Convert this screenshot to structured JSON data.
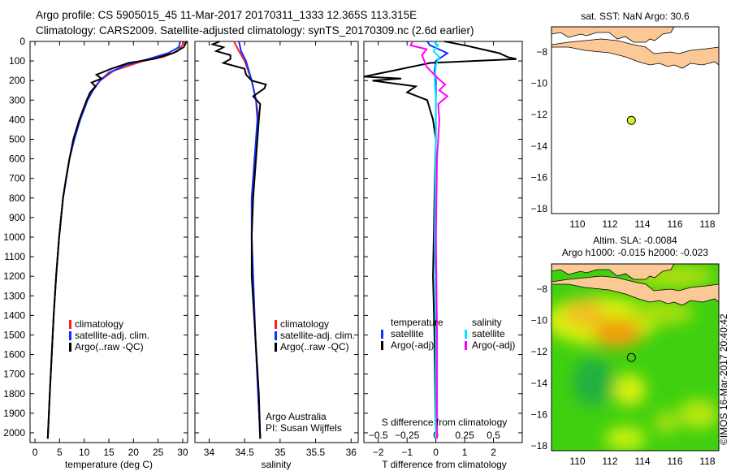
{
  "header": {
    "line1": "Argo profile: CS 5905015_45 11-Mar-2017 20170311_1333 12.365S 113.315E",
    "line2": "Climatology: CARS2009. Satellite-adjusted climatology: synTS_20170309.nc (2.6d earlier)"
  },
  "credit": "©IMOS 16-Mar-2017 20:40:42",
  "colors": {
    "climatology": "#ff2020",
    "satellite": "#1030ff",
    "argo": "#000000",
    "sal_satellite": "#00e8ff",
    "sal_argo": "#ff00ff",
    "land": "#fcc896",
    "dot": "#d8f020"
  },
  "chart_data": [
    {
      "type": "line",
      "name": "temperature",
      "xlabel": "temperature (deg C)",
      "xlim": [
        -1,
        31
      ],
      "ylim": [
        2050,
        0
      ],
      "yticks": [
        0,
        100,
        200,
        300,
        400,
        500,
        600,
        700,
        800,
        900,
        1000,
        1100,
        1200,
        1300,
        1400,
        1500,
        1600,
        1700,
        1800,
        1900,
        2000
      ],
      "xticks": [
        0,
        5,
        10,
        15,
        20,
        25,
        30
      ],
      "legend": [
        "climatology",
        "satellite-adj. clim.",
        "Argo(..raw -QC)"
      ],
      "series": [
        {
          "name": "climatology",
          "color": "#ff2020",
          "depth": [
            0,
            50,
            80,
            100,
            150,
            200,
            250,
            300,
            400,
            500,
            600,
            700,
            800,
            900,
            1000,
            1200,
            1400,
            1600,
            1800,
            2030
          ],
          "values": [
            30.5,
            29,
            26,
            22,
            16,
            13.2,
            11.6,
            10.6,
            9.1,
            7.9,
            7.0,
            6.3,
            5.7,
            5.3,
            4.9,
            4.3,
            3.8,
            3.4,
            3.0,
            2.6
          ]
        },
        {
          "name": "satellite-adj. clim.",
          "color": "#1030ff",
          "depth": [
            0,
            30,
            60,
            90,
            120,
            160,
            200,
            250,
            300,
            400,
            500,
            600,
            700,
            800,
            1000,
            1200,
            1400,
            1600,
            1800,
            2030
          ],
          "values": [
            29.5,
            29.2,
            27,
            23,
            18.5,
            15,
            13.2,
            11.8,
            10.7,
            9.2,
            8.0,
            7.0,
            6.3,
            5.7,
            4.9,
            4.3,
            3.8,
            3.4,
            3.0,
            2.6
          ]
        },
        {
          "name": "Argo(..raw -QC)",
          "color": "#000000",
          "depth": [
            0,
            30,
            60,
            90,
            110,
            140,
            170,
            190,
            210,
            230,
            260,
            300,
            400,
            500,
            600,
            800,
            1000,
            1200,
            1400,
            1600,
            1800,
            2030
          ],
          "values": [
            30.8,
            30.2,
            28,
            24,
            19,
            15.5,
            12.5,
            13.5,
            11.5,
            12.3,
            11.2,
            10.5,
            9.0,
            7.8,
            7.0,
            5.7,
            4.9,
            4.3,
            3.8,
            3.4,
            3.0,
            2.6
          ]
        }
      ]
    },
    {
      "type": "line",
      "name": "salinity",
      "xlabel": "salinity",
      "xlim": [
        33.8,
        36.1
      ],
      "ylim": [
        2050,
        0
      ],
      "xticks": [
        34,
        34.5,
        35,
        35.5,
        36
      ],
      "legend": [
        "climatology",
        "satellite-adj. clim.",
        "Argo(..raw -QC)"
      ],
      "annotation": [
        "Argo Australia",
        "PI: Susan Wijffels"
      ],
      "series": [
        {
          "name": "climatology",
          "color": "#ff2020",
          "depth": [
            0,
            50,
            100,
            200,
            300,
            400,
            600,
            800,
            1000,
            1500,
            2030
          ],
          "values": [
            34.35,
            34.42,
            34.5,
            34.6,
            34.66,
            34.7,
            34.64,
            34.6,
            34.6,
            34.65,
            34.72
          ]
        },
        {
          "name": "satellite-adj. clim.",
          "color": "#1030ff",
          "depth": [
            0,
            50,
            100,
            200,
            300,
            400,
            600,
            800,
            1000,
            1500,
            2030
          ],
          "values": [
            34.42,
            34.45,
            34.52,
            34.6,
            34.66,
            34.68,
            34.64,
            34.6,
            34.6,
            34.65,
            34.72
          ]
        },
        {
          "name": "Argo(..raw -QC)",
          "color": "#000000",
          "depth": [
            0,
            15,
            30,
            50,
            70,
            90,
            110,
            140,
            170,
            200,
            220,
            240,
            280,
            320,
            400,
            600,
            800,
            1000,
            1200,
            1500,
            1800,
            2030
          ],
          "values": [
            34.15,
            34.05,
            34.2,
            34.1,
            34.3,
            34.3,
            34.2,
            34.5,
            34.52,
            34.6,
            34.8,
            34.78,
            34.62,
            34.72,
            34.7,
            34.66,
            34.62,
            34.6,
            34.6,
            34.65,
            34.7,
            34.72
          ]
        }
      ]
    },
    {
      "type": "line",
      "name": "differences",
      "xlabel": "T difference from climatology",
      "xlabel2": "S difference from climatology",
      "xlim": [
        -2.5,
        3
      ],
      "ylim": [
        2050,
        0
      ],
      "xticks": [
        -2,
        -1,
        0,
        1,
        2
      ],
      "xticks2": [
        -0.5,
        -0.25,
        0,
        0.25,
        0.5
      ],
      "legend_temperature": {
        "title": "temperature",
        "items": [
          "satellite",
          "Argo(-adj)"
        ]
      },
      "legend_salinity": {
        "title": "salinity",
        "items": [
          "satellite",
          "Argo(-adj)"
        ]
      },
      "series": [
        {
          "name": "T satellite",
          "color": "#1030ff",
          "depth": [
            0,
            20,
            40,
            60,
            80,
            100,
            150,
            200,
            300,
            400,
            600,
            1000,
            1500,
            2030
          ],
          "values": [
            -0.3,
            -0.2,
            0.1,
            0.4,
            0.2,
            0,
            -0.05,
            0,
            0,
            0,
            0,
            0,
            0,
            0
          ]
        },
        {
          "name": "T Argo(-adj)",
          "color": "#000000",
          "depth": [
            0,
            20,
            40,
            60,
            80,
            90,
            110,
            150,
            180,
            190,
            200,
            230,
            260,
            300,
            350,
            400,
            500,
            800,
            1200,
            1500,
            2030
          ],
          "values": [
            0.3,
            1,
            1.6,
            2.2,
            2.5,
            2.8,
            -0.2,
            -1.5,
            -2.5,
            -1.2,
            -2.2,
            -0.7,
            -1.0,
            -0.3,
            -0.2,
            -0.1,
            0,
            -0.05,
            -0.1,
            -0.05,
            0
          ]
        },
        {
          "name": "S satellite",
          "color": "#00e8ff",
          "depth": [
            0,
            20,
            50,
            80,
            120,
            200,
            300,
            500,
            1000,
            1500,
            2030
          ],
          "values": [
            -0.02,
            0.02,
            -0.02,
            0.03,
            0,
            -0.01,
            0,
            0,
            -0.01,
            0,
            0
          ]
        },
        {
          "name": "S Argo(-adj)",
          "color": "#ff00ff",
          "depth": [
            0,
            20,
            40,
            70,
            100,
            130,
            160,
            190,
            220,
            250,
            280,
            320,
            400,
            600,
            1000,
            1500,
            2030
          ],
          "values": [
            -0.2,
            -0.22,
            -0.08,
            -0.12,
            -0.1,
            -0.08,
            -0.03,
            0.02,
            0.08,
            0.03,
            0.1,
            0.02,
            0.03,
            0.01,
            0,
            0.01,
            0.01
          ]
        }
      ]
    },
    {
      "type": "map",
      "name": "sst-map",
      "title": "sat. SST: NaN Argo: 30.6",
      "xticks": [
        110,
        112,
        114,
        116,
        118
      ],
      "yticks": [
        -8,
        -10,
        -12,
        -14,
        -16,
        -18
      ],
      "xlim": [
        108.4,
        118.7
      ],
      "ylim": [
        -18.3,
        -6.4
      ],
      "point": {
        "lon": 113.315,
        "lat": -12.365
      }
    },
    {
      "type": "map",
      "name": "sla-map",
      "title": "Altim. SLA: -0.0084",
      "subtitle": "Argo h1000: -0.015 h2000: -0.023",
      "xticks": [
        110,
        112,
        114,
        116,
        118
      ],
      "yticks": [
        -8,
        -10,
        -12,
        -14,
        -16,
        -18
      ],
      "xlim": [
        108.4,
        118.7
      ],
      "ylim": [
        -18.3,
        -6.4
      ],
      "point": {
        "lon": 113.315,
        "lat": -12.365
      }
    }
  ]
}
